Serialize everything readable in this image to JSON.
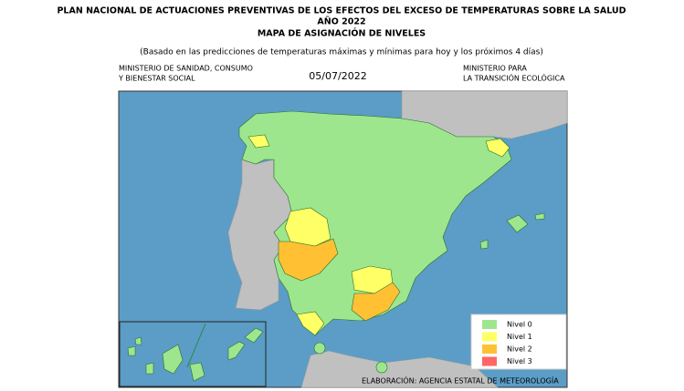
{
  "header": {
    "title_lines": [
      "PLAN NACIONAL DE ACTUACIONES PREVENTIVAS DE LOS EFECTOS DEL EXCESO DE TEMPERATURAS SOBRE LA SALUD",
      "AÑO 2022",
      "MAPA DE ASIGNACIÓN DE NIVELES"
    ],
    "subtitle": "(Basado en las predicciones de temperaturas máximas y mínimas para hoy y los próximos 4 días)",
    "left_ministry": [
      "MINISTERIO DE SANIDAD, CONSUMO",
      "Y BIENESTAR SOCIAL"
    ],
    "date": "05/07/2022",
    "right_ministry": [
      "MINISTERIO PARA",
      "LA TRANSICIÓN ECOLÓGICA"
    ]
  },
  "legend": {
    "items": [
      {
        "label": "Nivel 0",
        "color": "#9ee68e"
      },
      {
        "label": "Nivel 1",
        "color": "#ffff66"
      },
      {
        "label": "Nivel 2",
        "color": "#ffc133"
      },
      {
        "label": "Nivel 3",
        "color": "#ff6666"
      }
    ]
  },
  "footer": "ELABORACIÓN: AGENCIA ESTATAL DE METEOROLOGÍA"
}
